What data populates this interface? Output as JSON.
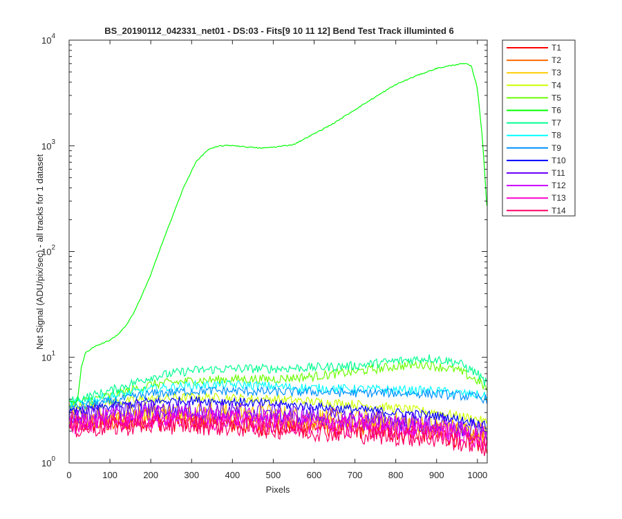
{
  "chart_data": {
    "type": "line",
    "title": "BS_20190112_042331_net01 - DS:03 - Fits[9  10  11  12]   Bend Test       Track illuminted 6",
    "xlabel": "Pixels",
    "ylabel": "Net Signal (ADU/pix/sec) - all tracks for 1 dataset",
    "xlim": [
      0,
      1024
    ],
    "ylim": [
      1,
      10000
    ],
    "yscale": "log",
    "grid": false,
    "legend_position": "outside-right-top",
    "x_ticks": [
      "0",
      "100",
      "200",
      "300",
      "400",
      "500",
      "600",
      "700",
      "800",
      "900",
      "1000"
    ],
    "y_ticks": [
      {
        "base": "10",
        "exp": "0"
      },
      {
        "base": "10",
        "exp": "1"
      },
      {
        "base": "10",
        "exp": "2"
      },
      {
        "base": "10",
        "exp": "3"
      },
      {
        "base": "10",
        "exp": "4"
      }
    ],
    "series": [
      {
        "name": "T1",
        "color": "#ff0000",
        "points": [
          [
            0,
            2.3
          ],
          [
            100,
            2.4
          ],
          [
            200,
            2.5
          ],
          [
            300,
            2.4
          ],
          [
            400,
            2.3
          ],
          [
            500,
            2.2
          ],
          [
            600,
            2.2
          ],
          [
            700,
            2.1
          ],
          [
            800,
            2.0
          ],
          [
            900,
            1.9
          ],
          [
            1000,
            1.6
          ],
          [
            1024,
            1.5
          ]
        ]
      },
      {
        "name": "T2",
        "color": "#ff6a00",
        "points": [
          [
            0,
            2.5
          ],
          [
            100,
            2.6
          ],
          [
            200,
            2.7
          ],
          [
            300,
            2.7
          ],
          [
            400,
            2.6
          ],
          [
            500,
            2.5
          ],
          [
            600,
            2.4
          ],
          [
            700,
            2.3
          ],
          [
            800,
            2.2
          ],
          [
            900,
            2.1
          ],
          [
            1000,
            1.8
          ],
          [
            1024,
            1.7
          ]
        ]
      },
      {
        "name": "T3",
        "color": "#ffcc00",
        "points": [
          [
            0,
            2.8
          ],
          [
            100,
            2.9
          ],
          [
            200,
            3.1
          ],
          [
            300,
            3.1
          ],
          [
            400,
            3.0
          ],
          [
            500,
            2.9
          ],
          [
            600,
            2.7
          ],
          [
            700,
            2.6
          ],
          [
            800,
            2.5
          ],
          [
            900,
            2.3
          ],
          [
            1000,
            2.0
          ],
          [
            1024,
            1.9
          ]
        ]
      },
      {
        "name": "T4",
        "color": "#ccff00",
        "points": [
          [
            0,
            3.4
          ],
          [
            100,
            3.7
          ],
          [
            200,
            4.0
          ],
          [
            300,
            4.2
          ],
          [
            400,
            4.1
          ],
          [
            500,
            4.0
          ],
          [
            600,
            3.8
          ],
          [
            700,
            3.6
          ],
          [
            800,
            3.3
          ],
          [
            900,
            3.0
          ],
          [
            1000,
            2.6
          ],
          [
            1024,
            2.4
          ]
        ]
      },
      {
        "name": "T5",
        "color": "#6aff00",
        "points": [
          [
            0,
            3.6
          ],
          [
            100,
            4.3
          ],
          [
            200,
            5.5
          ],
          [
            300,
            6.0
          ],
          [
            400,
            6.2
          ],
          [
            500,
            6.2
          ],
          [
            600,
            6.6
          ],
          [
            700,
            7.3
          ],
          [
            800,
            8.2
          ],
          [
            870,
            8.6
          ],
          [
            950,
            7.6
          ],
          [
            1000,
            6.0
          ],
          [
            1024,
            5.0
          ]
        ]
      },
      {
        "name": "T6",
        "color": "#00ff00",
        "points": [
          [
            0,
            3.8
          ],
          [
            20,
            3.8
          ],
          [
            30,
            8.0
          ],
          [
            40,
            11.0
          ],
          [
            60,
            12.5
          ],
          [
            80,
            13.5
          ],
          [
            100,
            14.5
          ],
          [
            120,
            16.5
          ],
          [
            140,
            20
          ],
          [
            160,
            27
          ],
          [
            180,
            40
          ],
          [
            200,
            60
          ],
          [
            220,
            100
          ],
          [
            250,
            200
          ],
          [
            280,
            400
          ],
          [
            310,
            700
          ],
          [
            340,
            920
          ],
          [
            370,
            1000
          ],
          [
            400,
            1010
          ],
          [
            430,
            980
          ],
          [
            470,
            950
          ],
          [
            510,
            980
          ],
          [
            550,
            1030
          ],
          [
            600,
            1300
          ],
          [
            650,
            1650
          ],
          [
            700,
            2200
          ],
          [
            750,
            2900
          ],
          [
            800,
            3800
          ],
          [
            850,
            4600
          ],
          [
            900,
            5400
          ],
          [
            950,
            5900
          ],
          [
            970,
            6000
          ],
          [
            985,
            5700
          ],
          [
            1000,
            3500
          ],
          [
            1012,
            1200
          ],
          [
            1024,
            240
          ]
        ]
      },
      {
        "name": "T7",
        "color": "#00ff90",
        "points": [
          [
            0,
            3.8
          ],
          [
            100,
            4.8
          ],
          [
            200,
            6.5
          ],
          [
            300,
            7.5
          ],
          [
            400,
            7.8
          ],
          [
            500,
            7.8
          ],
          [
            600,
            8.0
          ],
          [
            700,
            8.3
          ],
          [
            800,
            9.2
          ],
          [
            880,
            9.8
          ],
          [
            950,
            9.0
          ],
          [
            1000,
            7.0
          ],
          [
            1024,
            5.5
          ]
        ]
      },
      {
        "name": "T8",
        "color": "#00ffff",
        "points": [
          [
            0,
            3.6
          ],
          [
            100,
            4.2
          ],
          [
            200,
            5.0
          ],
          [
            300,
            5.4
          ],
          [
            400,
            5.5
          ],
          [
            500,
            5.3
          ],
          [
            600,
            5.1
          ],
          [
            700,
            5.0
          ],
          [
            800,
            4.9
          ],
          [
            900,
            4.8
          ],
          [
            1000,
            4.4
          ],
          [
            1024,
            4.2
          ]
        ]
      },
      {
        "name": "T9",
        "color": "#0090ff",
        "points": [
          [
            0,
            3.3
          ],
          [
            100,
            3.8
          ],
          [
            200,
            4.5
          ],
          [
            300,
            4.8
          ],
          [
            400,
            4.8
          ],
          [
            500,
            4.7
          ],
          [
            600,
            4.7
          ],
          [
            700,
            4.6
          ],
          [
            800,
            4.6
          ],
          [
            900,
            4.5
          ],
          [
            1000,
            4.2
          ],
          [
            1024,
            4.0
          ]
        ]
      },
      {
        "name": "T10",
        "color": "#0000ff",
        "points": [
          [
            0,
            3.0
          ],
          [
            100,
            3.4
          ],
          [
            200,
            3.8
          ],
          [
            300,
            3.9
          ],
          [
            400,
            3.8
          ],
          [
            500,
            3.6
          ],
          [
            600,
            3.4
          ],
          [
            700,
            3.2
          ],
          [
            800,
            3.0
          ],
          [
            900,
            2.8
          ],
          [
            1000,
            2.4
          ],
          [
            1024,
            2.2
          ]
        ]
      },
      {
        "name": "T11",
        "color": "#6a00ff",
        "points": [
          [
            0,
            2.7
          ],
          [
            100,
            3.0
          ],
          [
            200,
            3.2
          ],
          [
            300,
            3.2
          ],
          [
            400,
            3.1
          ],
          [
            500,
            3.0
          ],
          [
            600,
            2.8
          ],
          [
            700,
            2.6
          ],
          [
            800,
            2.5
          ],
          [
            900,
            2.3
          ],
          [
            1000,
            2.0
          ],
          [
            1024,
            1.9
          ]
        ]
      },
      {
        "name": "T12",
        "color": "#cc00ff",
        "points": [
          [
            0,
            2.5
          ],
          [
            100,
            2.7
          ],
          [
            200,
            2.8
          ],
          [
            300,
            2.8
          ],
          [
            400,
            2.7
          ],
          [
            500,
            2.6
          ],
          [
            600,
            2.5
          ],
          [
            700,
            2.4
          ],
          [
            800,
            2.3
          ],
          [
            900,
            2.1
          ],
          [
            1000,
            1.9
          ],
          [
            1024,
            1.8
          ]
        ]
      },
      {
        "name": "T13",
        "color": "#ff00cc",
        "points": [
          [
            0,
            2.3
          ],
          [
            100,
            2.5
          ],
          [
            200,
            2.6
          ],
          [
            300,
            2.6
          ],
          [
            400,
            2.5
          ],
          [
            500,
            2.4
          ],
          [
            600,
            2.3
          ],
          [
            700,
            2.2
          ],
          [
            800,
            2.1
          ],
          [
            900,
            2.0
          ],
          [
            1000,
            1.7
          ],
          [
            1024,
            1.6
          ]
        ]
      },
      {
        "name": "T14",
        "color": "#ff0066",
        "points": [
          [
            0,
            2.1
          ],
          [
            100,
            2.2
          ],
          [
            200,
            2.3
          ],
          [
            300,
            2.3
          ],
          [
            400,
            2.2
          ],
          [
            500,
            2.1
          ],
          [
            600,
            2.0
          ],
          [
            700,
            1.9
          ],
          [
            800,
            1.8
          ],
          [
            900,
            1.7
          ],
          [
            1000,
            1.5
          ],
          [
            1024,
            1.4
          ]
        ]
      }
    ]
  }
}
